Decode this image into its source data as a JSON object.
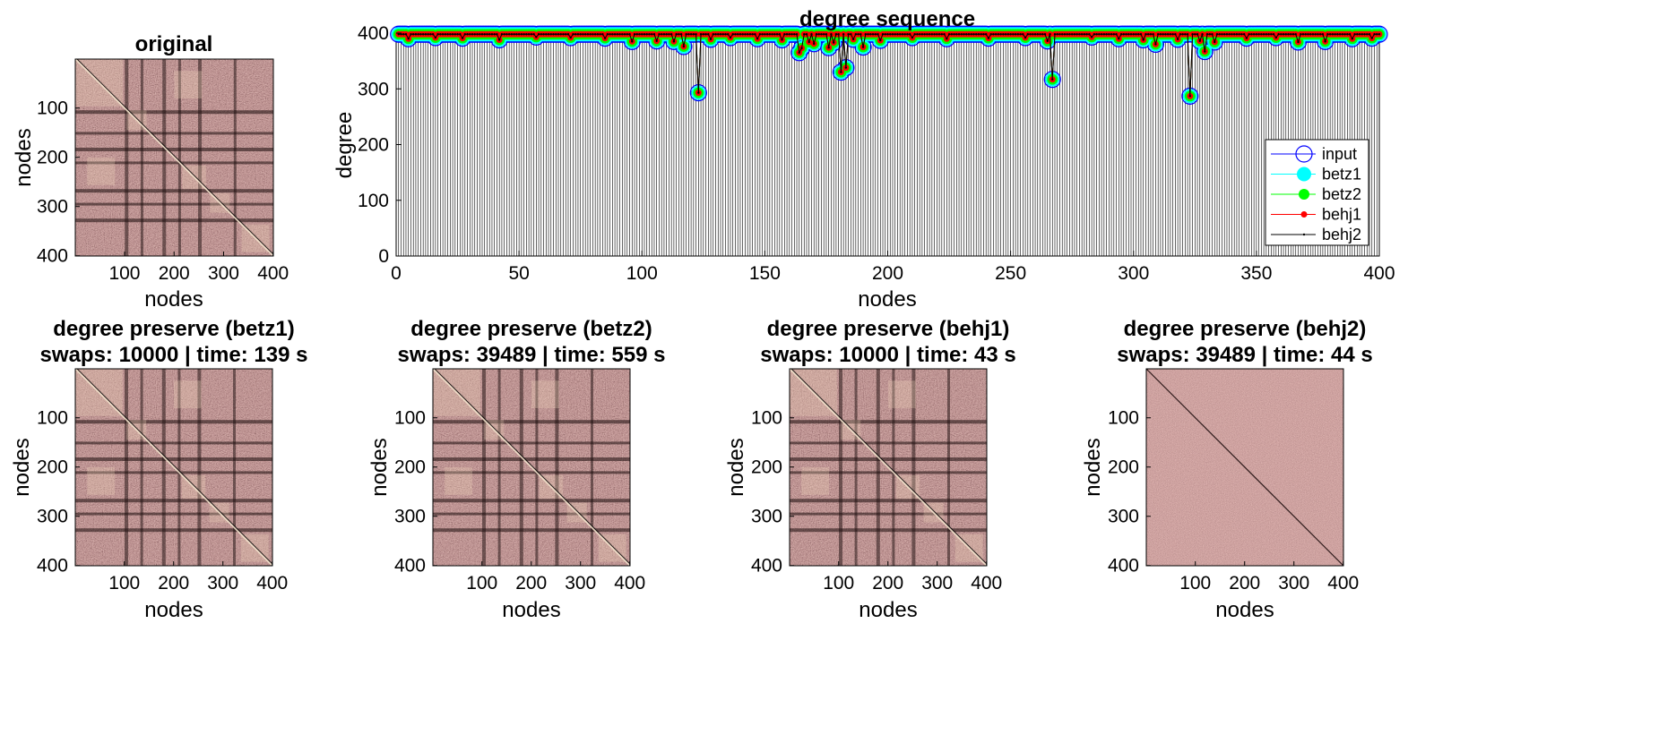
{
  "figure": {
    "original": {
      "title": "original",
      "xlabel": "nodes",
      "ylabel": "nodes",
      "xticks": [
        "100",
        "200",
        "300",
        "400"
      ],
      "yticks": [
        "100",
        "200",
        "300",
        "400"
      ]
    },
    "panels": [
      {
        "id": "betz1",
        "title1": "degree preserve (betz1)",
        "title2": "swaps: 10000 | time: 139 s",
        "xlabel": "nodes",
        "ylabel": "nodes",
        "xticks": [
          "100",
          "200",
          "300",
          "400"
        ],
        "yticks": [
          "100",
          "200",
          "300",
          "400"
        ]
      },
      {
        "id": "betz2",
        "title1": "degree preserve (betz2)",
        "title2": "swaps: 39489 | time: 559 s",
        "xlabel": "nodes",
        "ylabel": "nodes",
        "xticks": [
          "100",
          "200",
          "300",
          "400"
        ],
        "yticks": [
          "100",
          "200",
          "300",
          "400"
        ]
      },
      {
        "id": "behj1",
        "title1": "degree preserve (behj1)",
        "title2": "swaps: 10000 | time: 43 s",
        "xlabel": "nodes",
        "ylabel": "nodes",
        "xticks": [
          "100",
          "200",
          "300",
          "400"
        ],
        "yticks": [
          "100",
          "200",
          "300",
          "400"
        ]
      },
      {
        "id": "behj2",
        "title1": "degree preserve (behj2)",
        "title2": "swaps: 39489 | time: 44 s",
        "xlabel": "nodes",
        "ylabel": "nodes",
        "xticks": [
          "100",
          "200",
          "300",
          "400"
        ],
        "yticks": [
          "100",
          "200",
          "300",
          "400"
        ]
      }
    ]
  },
  "chart_data": [
    {
      "type": "heatmap",
      "title": "original",
      "xlabel": "nodes",
      "ylabel": "nodes",
      "xlim": [
        1,
        400
      ],
      "ylim": [
        1,
        400
      ],
      "colormap": [
        "#000000",
        "#8b4a4a",
        "#fff3d6"
      ],
      "structure": "structured adjacency with bright diagonal blocks and dark bands"
    },
    {
      "type": "line",
      "title": "degree sequence",
      "xlabel": "nodes",
      "ylabel": "degree",
      "xlim": [
        0,
        400
      ],
      "ylim": [
        0,
        400
      ],
      "xticks": [
        "0",
        "50",
        "100",
        "150",
        "200",
        "250",
        "300",
        "350",
        "400"
      ],
      "yticks": [
        "0",
        "100",
        "200",
        "300",
        "400"
      ],
      "legend_position": "bottom-right",
      "baseline_degree": 398,
      "dips": [
        {
          "x": 5,
          "y": 390
        },
        {
          "x": 16,
          "y": 392
        },
        {
          "x": 27,
          "y": 391
        },
        {
          "x": 42,
          "y": 388
        },
        {
          "x": 57,
          "y": 393
        },
        {
          "x": 71,
          "y": 392
        },
        {
          "x": 85,
          "y": 391
        },
        {
          "x": 96,
          "y": 385
        },
        {
          "x": 106,
          "y": 386
        },
        {
          "x": 113,
          "y": 385
        },
        {
          "x": 117,
          "y": 376
        },
        {
          "x": 123,
          "y": 293
        },
        {
          "x": 128,
          "y": 389
        },
        {
          "x": 136,
          "y": 392
        },
        {
          "x": 147,
          "y": 390
        },
        {
          "x": 157,
          "y": 388
        },
        {
          "x": 164,
          "y": 365
        },
        {
          "x": 165,
          "y": 373
        },
        {
          "x": 168,
          "y": 384
        },
        {
          "x": 170,
          "y": 381
        },
        {
          "x": 176,
          "y": 374
        },
        {
          "x": 178,
          "y": 383
        },
        {
          "x": 181,
          "y": 330
        },
        {
          "x": 183,
          "y": 338
        },
        {
          "x": 186,
          "y": 389
        },
        {
          "x": 190,
          "y": 375
        },
        {
          "x": 197,
          "y": 387
        },
        {
          "x": 210,
          "y": 392
        },
        {
          "x": 224,
          "y": 390
        },
        {
          "x": 241,
          "y": 391
        },
        {
          "x": 256,
          "y": 392
        },
        {
          "x": 265,
          "y": 386
        },
        {
          "x": 267,
          "y": 317
        },
        {
          "x": 283,
          "y": 393
        },
        {
          "x": 294,
          "y": 390
        },
        {
          "x": 304,
          "y": 388
        },
        {
          "x": 309,
          "y": 380
        },
        {
          "x": 318,
          "y": 389
        },
        {
          "x": 323,
          "y": 287
        },
        {
          "x": 327,
          "y": 386
        },
        {
          "x": 329,
          "y": 367
        },
        {
          "x": 333,
          "y": 384
        },
        {
          "x": 346,
          "y": 391
        },
        {
          "x": 358,
          "y": 392
        },
        {
          "x": 367,
          "y": 384
        },
        {
          "x": 378,
          "y": 385
        },
        {
          "x": 389,
          "y": 390
        },
        {
          "x": 397,
          "y": 391
        }
      ],
      "series": [
        {
          "name": "input",
          "color": "#0000ff",
          "marker": "open-circle-large"
        },
        {
          "name": "betz1",
          "color": "#00ffff",
          "marker": "filled-circle-large"
        },
        {
          "name": "betz2",
          "color": "#00ff00",
          "marker": "filled-circle-medium"
        },
        {
          "name": "behj1",
          "color": "#ff0000",
          "marker": "filled-circle-small"
        },
        {
          "name": "behj2",
          "color": "#000000",
          "marker": "dot"
        }
      ]
    },
    {
      "type": "heatmap",
      "title": "degree preserve (betz1)",
      "subtitle": "swaps: 10000 | time: 139 s",
      "xlabel": "nodes",
      "ylabel": "nodes",
      "xlim": [
        1,
        400
      ],
      "ylim": [
        1,
        400
      ]
    },
    {
      "type": "heatmap",
      "title": "degree preserve (betz2)",
      "subtitle": "swaps: 39489 | time: 559 s",
      "xlabel": "nodes",
      "ylabel": "nodes",
      "xlim": [
        1,
        400
      ],
      "ylim": [
        1,
        400
      ]
    },
    {
      "type": "heatmap",
      "title": "degree preserve (behj1)",
      "subtitle": "swaps: 10000 | time: 43 s",
      "xlabel": "nodes",
      "ylabel": "nodes",
      "xlim": [
        1,
        400
      ],
      "ylim": [
        1,
        400
      ]
    },
    {
      "type": "heatmap",
      "title": "degree preserve (behj2)",
      "subtitle": "swaps: 39489 | time: 44 s",
      "xlabel": "nodes",
      "ylabel": "nodes",
      "xlim": [
        1,
        400
      ],
      "ylim": [
        1,
        400
      ],
      "structure": "randomized, mostly uniform"
    }
  ]
}
